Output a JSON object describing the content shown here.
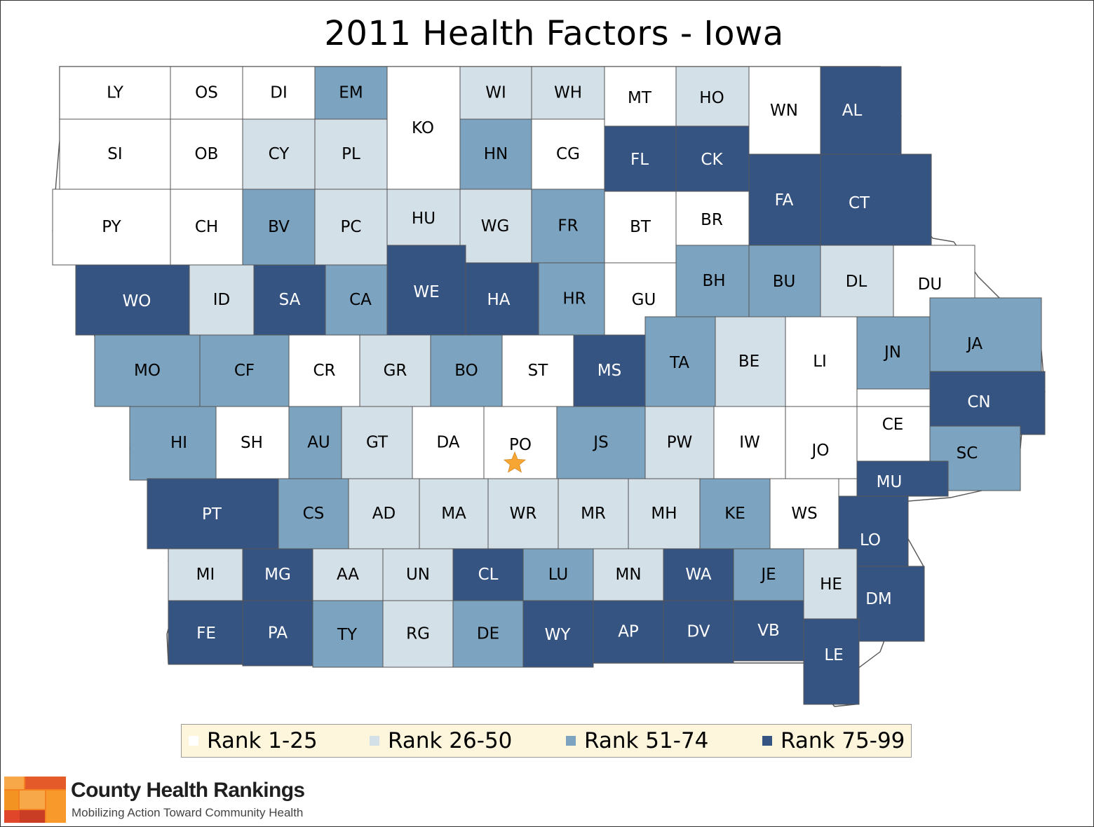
{
  "title": "2011 Health Factors - Iowa",
  "colors": {
    "rank_1_25": "#ffffff",
    "rank_26_50": "#d3e0e8",
    "rank_51_74": "#7ca4c0",
    "rank_75_99": "#365482",
    "border": "#555555",
    "star": "#f7a533"
  },
  "legend": [
    {
      "label": "Rank 1-25",
      "color": "#ffffff"
    },
    {
      "label": "Rank 26-50",
      "color": "#d3e0e8"
    },
    {
      "label": "Rank 51-74",
      "color": "#7ca4c0"
    },
    {
      "label": "Rank 75-99",
      "color": "#365482"
    }
  ],
  "counties": [
    {
      "code": "LY",
      "tier": 1
    },
    {
      "code": "OS",
      "tier": 1
    },
    {
      "code": "DI",
      "tier": 1
    },
    {
      "code": "EM",
      "tier": 3
    },
    {
      "code": "KO",
      "tier": 1
    },
    {
      "code": "WI",
      "tier": 2
    },
    {
      "code": "WH",
      "tier": 2
    },
    {
      "code": "MT",
      "tier": 1
    },
    {
      "code": "HO",
      "tier": 2
    },
    {
      "code": "WN",
      "tier": 1
    },
    {
      "code": "AL",
      "tier": 4
    },
    {
      "code": "SI",
      "tier": 1
    },
    {
      "code": "OB",
      "tier": 1
    },
    {
      "code": "CY",
      "tier": 2
    },
    {
      "code": "PL",
      "tier": 2
    },
    {
      "code": "HN",
      "tier": 3
    },
    {
      "code": "CG",
      "tier": 1
    },
    {
      "code": "FL",
      "tier": 4
    },
    {
      "code": "CK",
      "tier": 4
    },
    {
      "code": "FA",
      "tier": 4
    },
    {
      "code": "CT",
      "tier": 4
    },
    {
      "code": "PY",
      "tier": 1
    },
    {
      "code": "CH",
      "tier": 1
    },
    {
      "code": "BV",
      "tier": 3
    },
    {
      "code": "PC",
      "tier": 2
    },
    {
      "code": "HU",
      "tier": 2
    },
    {
      "code": "WG",
      "tier": 2
    },
    {
      "code": "FR",
      "tier": 3
    },
    {
      "code": "BT",
      "tier": 1
    },
    {
      "code": "BR",
      "tier": 1
    },
    {
      "code": "WO",
      "tier": 4
    },
    {
      "code": "ID",
      "tier": 2
    },
    {
      "code": "SA",
      "tier": 4
    },
    {
      "code": "CA",
      "tier": 3
    },
    {
      "code": "WE",
      "tier": 4
    },
    {
      "code": "HA",
      "tier": 4
    },
    {
      "code": "HR",
      "tier": 3
    },
    {
      "code": "GU",
      "tier": 1
    },
    {
      "code": "BH",
      "tier": 3
    },
    {
      "code": "BU",
      "tier": 3
    },
    {
      "code": "DL",
      "tier": 2
    },
    {
      "code": "DU",
      "tier": 1
    },
    {
      "code": "MO",
      "tier": 3
    },
    {
      "code": "CF",
      "tier": 3
    },
    {
      "code": "CR",
      "tier": 1
    },
    {
      "code": "GR",
      "tier": 2
    },
    {
      "code": "BO",
      "tier": 3
    },
    {
      "code": "ST",
      "tier": 1
    },
    {
      "code": "MS",
      "tier": 4
    },
    {
      "code": "TA",
      "tier": 3
    },
    {
      "code": "BE",
      "tier": 2
    },
    {
      "code": "LI",
      "tier": 1
    },
    {
      "code": "JN",
      "tier": 3
    },
    {
      "code": "JA",
      "tier": 3
    },
    {
      "code": "CN",
      "tier": 4
    },
    {
      "code": "HI",
      "tier": 3
    },
    {
      "code": "SH",
      "tier": 1
    },
    {
      "code": "AU",
      "tier": 3
    },
    {
      "code": "GT",
      "tier": 2
    },
    {
      "code": "DA",
      "tier": 1
    },
    {
      "code": "PO",
      "tier": 1
    },
    {
      "code": "JS",
      "tier": 3
    },
    {
      "code": "PW",
      "tier": 2
    },
    {
      "code": "IW",
      "tier": 1
    },
    {
      "code": "JO",
      "tier": 1
    },
    {
      "code": "CE",
      "tier": 1
    },
    {
      "code": "SC",
      "tier": 3
    },
    {
      "code": "MU",
      "tier": 4
    },
    {
      "code": "PT",
      "tier": 4
    },
    {
      "code": "CS",
      "tier": 3
    },
    {
      "code": "AD",
      "tier": 2
    },
    {
      "code": "MA",
      "tier": 2
    },
    {
      "code": "WR",
      "tier": 2
    },
    {
      "code": "MR",
      "tier": 2
    },
    {
      "code": "MH",
      "tier": 2
    },
    {
      "code": "KE",
      "tier": 3
    },
    {
      "code": "WS",
      "tier": 1
    },
    {
      "code": "LO",
      "tier": 4
    },
    {
      "code": "MI",
      "tier": 2
    },
    {
      "code": "MG",
      "tier": 4
    },
    {
      "code": "AA",
      "tier": 2
    },
    {
      "code": "UN",
      "tier": 2
    },
    {
      "code": "CL",
      "tier": 4
    },
    {
      "code": "LU",
      "tier": 3
    },
    {
      "code": "MN",
      "tier": 2
    },
    {
      "code": "WA",
      "tier": 4
    },
    {
      "code": "JE",
      "tier": 3
    },
    {
      "code": "HE",
      "tier": 2
    },
    {
      "code": "DM",
      "tier": 4
    },
    {
      "code": "FE",
      "tier": 4
    },
    {
      "code": "PA",
      "tier": 4
    },
    {
      "code": "TY",
      "tier": 3
    },
    {
      "code": "RG",
      "tier": 2
    },
    {
      "code": "DE",
      "tier": 3
    },
    {
      "code": "WY",
      "tier": 4
    },
    {
      "code": "AP",
      "tier": 4
    },
    {
      "code": "DV",
      "tier": 4
    },
    {
      "code": "VB",
      "tier": 4
    },
    {
      "code": "LE",
      "tier": 4
    }
  ],
  "capital_marker": {
    "county": "PO",
    "icon": "star-icon"
  },
  "brand": {
    "name": "County Health Rankings",
    "tagline": "Mobilizing Action Toward Community Health",
    "logo_icon": "county-health-rankings-logo-icon"
  }
}
